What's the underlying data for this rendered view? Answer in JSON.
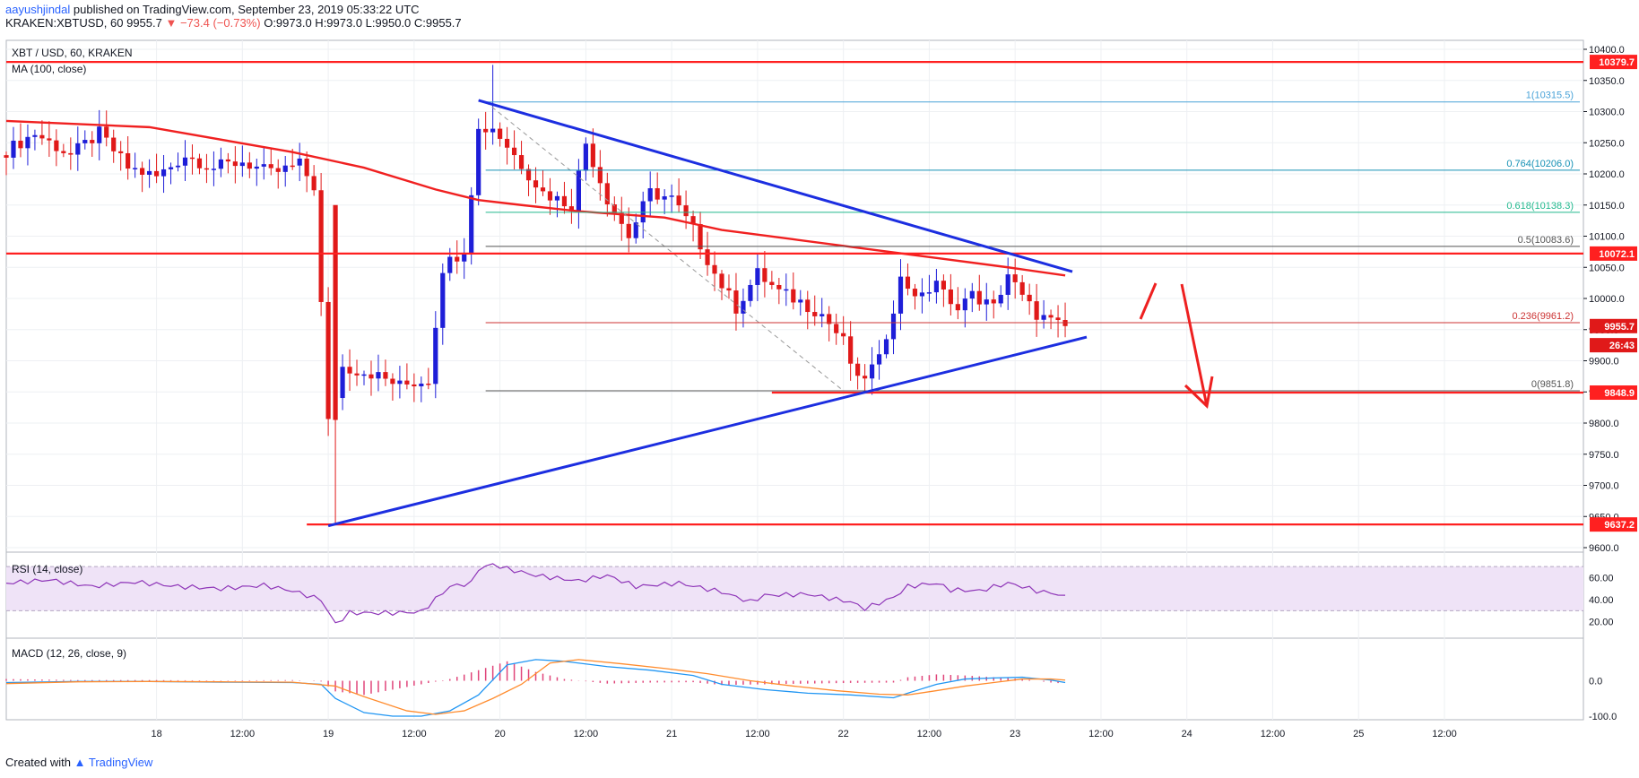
{
  "header": {
    "user": "aayushjindal",
    "published": " published on TradingView.com, September 23, 2019 05:33:22 UTC",
    "line2_left": "KRAKEN:XBTUSD, 60  9955.7 ",
    "line2_change": "▼ −73.4 (−0.73%)",
    "line2_right": " O:9973.0 H:9973.0 L:9950.0 C:9955.7"
  },
  "main": {
    "symbol": "XBT / USD, 60, KRAKEN",
    "ma_label": "MA (100, close)"
  },
  "rsi": {
    "label": "RSI (14, close)"
  },
  "macd": {
    "label": "MACD (12, 26, close, 9)"
  },
  "footer": {
    "created": "Created with ",
    "brand": "TradingView"
  },
  "colors": {
    "up": "#1e1ed8",
    "down": "#e01919",
    "ma": "#f02020",
    "trend": "#1c2ee0",
    "level": "#ff2020"
  },
  "chart_data": {
    "type": "candlestick",
    "title": "XBT / USD, 60, KRAKEN",
    "price_range": [
      9600,
      10400
    ],
    "price_ticks": [
      10400,
      10350,
      10300,
      10250,
      10200,
      10150,
      10100,
      10050,
      10000,
      9950,
      9900,
      9850,
      9800,
      9750,
      9700,
      9650,
      9600
    ],
    "price_tick_labels": [
      "10400.0",
      "10350.0",
      "10300.0",
      "10250.0",
      "10200.0",
      "10150.0",
      "10100.0",
      "10050.0",
      "10000.0",
      "9950.0",
      "9900.0",
      "9850.0",
      "9800.0",
      "9750.0",
      "9700.0",
      "9650.0",
      "9600.0"
    ],
    "time_ticks": [
      {
        "label": "18",
        "t": 21
      },
      {
        "label": "12:00",
        "t": 33
      },
      {
        "label": "19",
        "t": 45
      },
      {
        "label": "12:00",
        "t": 57
      },
      {
        "label": "20",
        "t": 69
      },
      {
        "label": "12:00",
        "t": 81
      },
      {
        "label": "21",
        "t": 93
      },
      {
        "label": "12:00",
        "t": 105
      },
      {
        "label": "22",
        "t": 117
      },
      {
        "label": "12:00",
        "t": 129
      },
      {
        "label": "23",
        "t": 141
      },
      {
        "label": "12:00",
        "t": 153
      },
      {
        "label": "24",
        "t": 165
      },
      {
        "label": "12:00",
        "t": 177
      },
      {
        "label": "25",
        "t": 189
      },
      {
        "label": "12:00",
        "t": 201
      }
    ],
    "key_points": [
      {
        "t": 0,
        "price": 10230
      },
      {
        "t": 5,
        "price": 10265
      },
      {
        "t": 10,
        "price": 10230
      },
      {
        "t": 14,
        "price": 10265
      },
      {
        "t": 18,
        "price": 10210
      },
      {
        "t": 22,
        "price": 10195
      },
      {
        "t": 26,
        "price": 10230
      },
      {
        "t": 30,
        "price": 10210
      },
      {
        "t": 34,
        "price": 10220
      },
      {
        "t": 38,
        "price": 10200
      },
      {
        "t": 42,
        "price": 10215
      },
      {
        "t": 44,
        "price": 10180
      },
      {
        "t": 46,
        "price": 9800
      },
      {
        "t": 48,
        "price": 9890
      },
      {
        "t": 52,
        "price": 9880
      },
      {
        "t": 56,
        "price": 9860
      },
      {
        "t": 60,
        "price": 9870
      },
      {
        "t": 62,
        "price": 10050
      },
      {
        "t": 65,
        "price": 10080
      },
      {
        "t": 67,
        "price": 10270
      },
      {
        "t": 69,
        "price": 10275
      },
      {
        "t": 72,
        "price": 10230
      },
      {
        "t": 76,
        "price": 10170
      },
      {
        "t": 80,
        "price": 10150
      },
      {
        "t": 82,
        "price": 10250
      },
      {
        "t": 85,
        "price": 10160
      },
      {
        "t": 88,
        "price": 10100
      },
      {
        "t": 91,
        "price": 10170
      },
      {
        "t": 94,
        "price": 10160
      },
      {
        "t": 97,
        "price": 10110
      },
      {
        "t": 100,
        "price": 10040
      },
      {
        "t": 103,
        "price": 9985
      },
      {
        "t": 106,
        "price": 10040
      },
      {
        "t": 109,
        "price": 10010
      },
      {
        "t": 112,
        "price": 9995
      },
      {
        "t": 115,
        "price": 9975
      },
      {
        "t": 118,
        "price": 9930
      },
      {
        "t": 120,
        "price": 9865
      },
      {
        "t": 123,
        "price": 9900
      },
      {
        "t": 126,
        "price": 10030
      },
      {
        "t": 129,
        "price": 10000
      },
      {
        "t": 131,
        "price": 10030
      },
      {
        "t": 133,
        "price": 9985
      },
      {
        "t": 136,
        "price": 10005
      },
      {
        "t": 139,
        "price": 9985
      },
      {
        "t": 141,
        "price": 10040
      },
      {
        "t": 143,
        "price": 10000
      },
      {
        "t": 145,
        "price": 9975
      },
      {
        "t": 147,
        "price": 9962
      },
      {
        "t": 148,
        "price": 9956
      }
    ],
    "moving_average": {
      "name": "MA (100, close)",
      "points": [
        [
          0,
          10285
        ],
        [
          20,
          10275
        ],
        [
          40,
          10235
        ],
        [
          50,
          10210
        ],
        [
          60,
          10175
        ],
        [
          66,
          10158
        ],
        [
          72,
          10150
        ],
        [
          80,
          10140
        ],
        [
          92,
          10130
        ],
        [
          100,
          10110
        ],
        [
          110,
          10095
        ],
        [
          120,
          10080
        ],
        [
          130,
          10065
        ],
        [
          140,
          10050
        ],
        [
          148,
          10037
        ]
      ]
    },
    "horizontal_levels": [
      {
        "label": "10379.7",
        "price": 10379.7,
        "from_t": 0
      },
      {
        "label": "10072.1",
        "price": 10072.1,
        "from_t": 0
      },
      {
        "label": "9848.9",
        "price": 9848.9,
        "from_t": 107
      },
      {
        "label": "9637.2",
        "price": 9637.2,
        "from_t": 42
      }
    ],
    "trendlines": [
      {
        "name": "upper",
        "from": {
          "t": 66,
          "price": 10318
        },
        "to": {
          "t": 149,
          "price": 10043
        }
      },
      {
        "name": "lower",
        "from": {
          "t": 45,
          "price": 9635
        },
        "to": {
          "t": 151,
          "price": 9938
        }
      }
    ],
    "fib_retracement": {
      "from": {
        "t": 67,
        "price": 10315.5
      },
      "to": {
        "t": 117,
        "price": 9851.8
      },
      "levels": [
        {
          "label": "1(10315.5)",
          "price": 10315.5,
          "color": "#4aa3d8"
        },
        {
          "label": "0.764(10206.0)",
          "price": 10206.0,
          "color": "#1591b5"
        },
        {
          "label": "0.618(10138.3)",
          "price": 10138.3,
          "color": "#22b98e"
        },
        {
          "label": "0.5(10083.6)",
          "price": 10083.6,
          "color": "#555555"
        },
        {
          "label": "0.236(9961.2)",
          "price": 9961.2,
          "color": "#cc3333"
        },
        {
          "label": "0(9851.8)",
          "price": 9851.8,
          "color": "#555555"
        }
      ]
    },
    "price_tags": [
      {
        "label": "10379.7",
        "price": 10379.7,
        "color": "#ff2020"
      },
      {
        "label": "10072.1",
        "price": 10072.1,
        "color": "#ff2020"
      },
      {
        "label": "9955.7",
        "price": 9955.7,
        "color": "#e01919"
      },
      {
        "label": "26:43",
        "price": 9925,
        "color": "#e01919"
      },
      {
        "label": "9848.9",
        "price": 9848.9,
        "color": "#ff2020"
      },
      {
        "label": "9637.2",
        "price": 9637.2,
        "color": "#ff2020"
      }
    ],
    "rsi": {
      "name": "RSI (14, close)",
      "range": [
        10,
        75
      ],
      "ticks": [
        60,
        40,
        20
      ],
      "tick_labels": [
        "60.00",
        "40.00",
        "20.00"
      ],
      "band": [
        30,
        70
      ],
      "points": [
        [
          0,
          55
        ],
        [
          6,
          58
        ],
        [
          12,
          52
        ],
        [
          18,
          56
        ],
        [
          24,
          52
        ],
        [
          30,
          50
        ],
        [
          36,
          53
        ],
        [
          40,
          48
        ],
        [
          44,
          40
        ],
        [
          46,
          18
        ],
        [
          48,
          28
        ],
        [
          54,
          28
        ],
        [
          58,
          29
        ],
        [
          62,
          52
        ],
        [
          65,
          55
        ],
        [
          66,
          68
        ],
        [
          68,
          72
        ],
        [
          70,
          68
        ],
        [
          74,
          62
        ],
        [
          80,
          57
        ],
        [
          84,
          62
        ],
        [
          88,
          52
        ],
        [
          94,
          55
        ],
        [
          100,
          47
        ],
        [
          104,
          38
        ],
        [
          106,
          44
        ],
        [
          112,
          45
        ],
        [
          118,
          38
        ],
        [
          120,
          32
        ],
        [
          124,
          42
        ],
        [
          126,
          52
        ],
        [
          130,
          55
        ],
        [
          132,
          49
        ],
        [
          136,
          48
        ],
        [
          140,
          55
        ],
        [
          142,
          52
        ],
        [
          144,
          48
        ],
        [
          148,
          44
        ]
      ]
    },
    "macd": {
      "name": "MACD (12, 26, close, 9)",
      "range": [
        -100,
        90
      ],
      "ticks": [
        0,
        -100
      ],
      "tick_labels": [
        "0.0",
        "-100.0"
      ],
      "macd_points": [
        [
          0,
          -5
        ],
        [
          10,
          -2
        ],
        [
          20,
          -2
        ],
        [
          30,
          -4
        ],
        [
          40,
          -5
        ],
        [
          44,
          -10
        ],
        [
          46,
          -50
        ],
        [
          50,
          -90
        ],
        [
          54,
          -100
        ],
        [
          58,
          -100
        ],
        [
          62,
          -85
        ],
        [
          66,
          -40
        ],
        [
          70,
          45
        ],
        [
          74,
          60
        ],
        [
          78,
          55
        ],
        [
          84,
          40
        ],
        [
          90,
          30
        ],
        [
          96,
          15
        ],
        [
          100,
          -10
        ],
        [
          106,
          -25
        ],
        [
          112,
          -35
        ],
        [
          118,
          -40
        ],
        [
          124,
          -48
        ],
        [
          126,
          -35
        ],
        [
          130,
          -10
        ],
        [
          134,
          5
        ],
        [
          138,
          8
        ],
        [
          142,
          10
        ],
        [
          146,
          2
        ],
        [
          148,
          -5
        ]
      ],
      "signal_points": [
        [
          0,
          -8
        ],
        [
          10,
          -3
        ],
        [
          20,
          -2
        ],
        [
          30,
          -3
        ],
        [
          40,
          -4
        ],
        [
          46,
          -15
        ],
        [
          50,
          -45
        ],
        [
          56,
          -85
        ],
        [
          60,
          -95
        ],
        [
          64,
          -85
        ],
        [
          68,
          -50
        ],
        [
          72,
          -10
        ],
        [
          76,
          50
        ],
        [
          80,
          60
        ],
        [
          86,
          48
        ],
        [
          92,
          35
        ],
        [
          98,
          20
        ],
        [
          104,
          0
        ],
        [
          110,
          -15
        ],
        [
          116,
          -28
        ],
        [
          122,
          -38
        ],
        [
          126,
          -40
        ],
        [
          130,
          -28
        ],
        [
          134,
          -15
        ],
        [
          138,
          -5
        ],
        [
          142,
          5
        ],
        [
          146,
          5
        ],
        [
          148,
          2
        ]
      ],
      "hist_points": [
        [
          0,
          5
        ],
        [
          10,
          2
        ],
        [
          20,
          2
        ],
        [
          30,
          1
        ],
        [
          40,
          2
        ],
        [
          44,
          -2
        ],
        [
          46,
          -30
        ],
        [
          50,
          -40
        ],
        [
          54,
          -25
        ],
        [
          58,
          -10
        ],
        [
          62,
          5
        ],
        [
          66,
          30
        ],
        [
          70,
          55
        ],
        [
          74,
          25
        ],
        [
          78,
          5
        ],
        [
          84,
          -8
        ],
        [
          90,
          -5
        ],
        [
          96,
          -4
        ],
        [
          100,
          -12
        ],
        [
          106,
          -10
        ],
        [
          112,
          -8
        ],
        [
          118,
          -6
        ],
        [
          124,
          -5
        ],
        [
          126,
          10
        ],
        [
          130,
          18
        ],
        [
          134,
          15
        ],
        [
          138,
          10
        ],
        [
          142,
          5
        ],
        [
          146,
          -5
        ],
        [
          148,
          -8
        ]
      ]
    },
    "grid": true,
    "legend": "top-left"
  }
}
